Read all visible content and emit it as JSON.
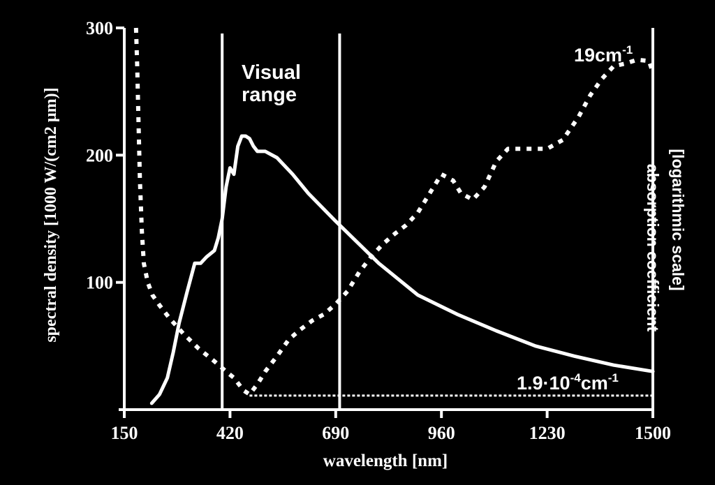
{
  "chart_data": {
    "type": "line",
    "title": "",
    "xlabel": "wavelength [nm]",
    "ylabel_left": "spectral density [1000 W/(cm2 µm)]",
    "ylabel_right_line1": "absorption coefficient",
    "ylabel_right_line2": "[logarithmic scale]",
    "xlim": [
      150,
      1500
    ],
    "ylim": [
      0,
      300
    ],
    "x_ticks": [
      150,
      420,
      690,
      960,
      1230,
      1500
    ],
    "x_tick_labels": [
      "150",
      "420",
      "690",
      "960",
      "1230",
      "1500"
    ],
    "y_ticks": [
      100,
      200,
      300
    ],
    "y_tick_labels": [
      "100",
      "200",
      "300"
    ],
    "grid": false,
    "legend": "none",
    "colors": {
      "background": "#000000",
      "foreground": "#ffffff"
    },
    "visual_range": {
      "label_line1": "Visual",
      "label_line2": "range",
      "x_start": 400,
      "x_end": 700
    },
    "series": [
      {
        "style": "solid",
        "x": [
          220,
          240,
          260,
          275,
          290,
          310,
          330,
          345,
          360,
          380,
          390,
          400,
          410,
          420,
          430,
          440,
          450,
          460,
          470,
          480,
          490,
          510,
          540,
          580,
          620,
          690,
          800,
          900,
          1000,
          1100,
          1200,
          1300,
          1400,
          1500
        ],
        "y": [
          5,
          12,
          25,
          45,
          68,
          92,
          115,
          115,
          120,
          125,
          135,
          150,
          175,
          190,
          185,
          207,
          215,
          215,
          213,
          207,
          203,
          203,
          198,
          185,
          170,
          148,
          115,
          90,
          75,
          62,
          50,
          42,
          35,
          30
        ]
      },
      {
        "style": "dotted",
        "x": [
          180,
          183,
          186,
          190,
          195,
          200,
          210,
          222,
          240,
          265,
          300,
          340,
          380,
          410,
          430,
          455,
          470,
          490,
          510,
          540,
          570,
          600,
          630,
          660,
          690,
          720,
          750,
          780,
          810,
          840,
          870,
          900,
          930,
          960,
          990,
          1010,
          1040,
          1070,
          1100,
          1130,
          1160,
          1190,
          1230,
          1270,
          1310,
          1340,
          1370,
          1400,
          1430,
          1460,
          1490,
          1500
        ],
        "y": [
          300,
          270,
          230,
          180,
          140,
          115,
          100,
          90,
          82,
          72,
          60,
          48,
          38,
          30,
          25,
          15,
          12,
          20,
          30,
          42,
          55,
          63,
          70,
          75,
          83,
          93,
          108,
          120,
          130,
          138,
          145,
          155,
          170,
          185,
          180,
          170,
          165,
          175,
          195,
          205,
          205,
          205,
          205,
          212,
          230,
          247,
          260,
          270,
          272,
          275,
          274,
          265
        ]
      },
      {
        "style": "dashed",
        "x": [
          470,
          1500
        ],
        "y": [
          11,
          11
        ]
      }
    ],
    "annotations": {
      "top": {
        "text": "19cm",
        "exponent": "-1"
      },
      "bottom": {
        "text_prefix": "1.9·10",
        "exponent": "-4",
        "text_suffix": "cm",
        "exponent2": "-1"
      }
    }
  }
}
